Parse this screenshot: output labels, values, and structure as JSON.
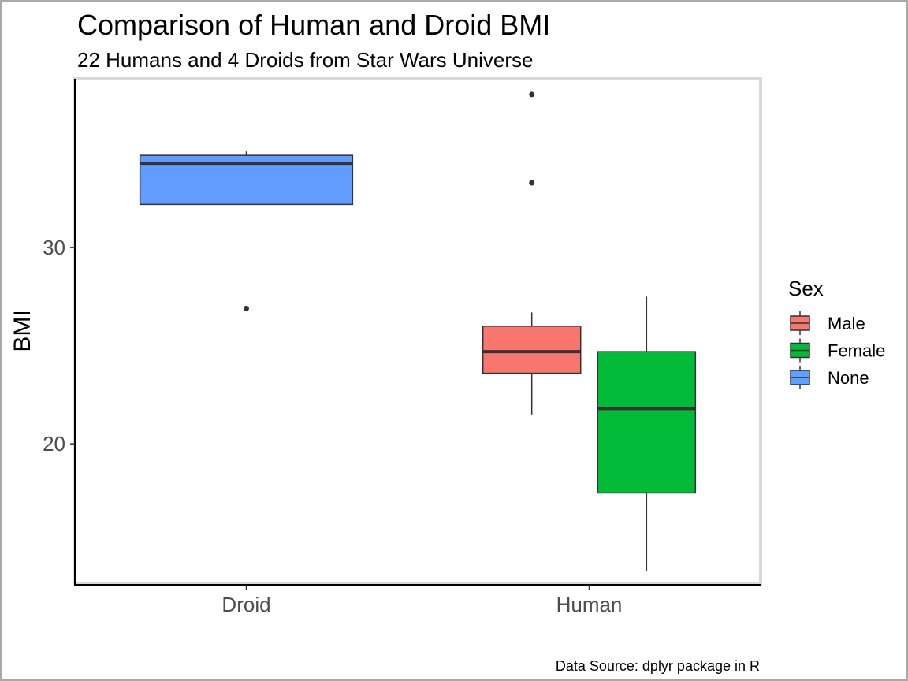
{
  "chart_data": {
    "type": "box",
    "title": "Comparison of Human and Droid BMI",
    "subtitle": "22 Humans and 4 Droids from Star Wars Universe",
    "caption": "Data Source: dplyr package in R",
    "xlabel": "",
    "ylabel": "BMI",
    "categories": [
      "Droid",
      "Human"
    ],
    "ylim": [
      12.9,
      38.6
    ],
    "yticks": [
      20,
      30
    ],
    "legend": {
      "title": "Sex",
      "position": "right"
    },
    "series": [
      {
        "name": "Male",
        "color": "#F8766D",
        "boxes": [
          {
            "category": "Human",
            "min": 21.5,
            "q1": 23.6,
            "median": 24.7,
            "q3": 26.0,
            "max": 26.7,
            "outliers": [
              33.3,
              37.8
            ]
          }
        ]
      },
      {
        "name": "Female",
        "color": "#00BA38",
        "boxes": [
          {
            "category": "Human",
            "min": 13.5,
            "q1": 17.5,
            "median": 21.8,
            "q3": 24.7,
            "max": 27.5,
            "outliers": []
          }
        ]
      },
      {
        "name": "None",
        "color": "#619CFF",
        "boxes": [
          {
            "category": "Droid",
            "min": 32.2,
            "q1": 32.2,
            "median": 34.3,
            "q3": 34.7,
            "max": 34.9,
            "outliers": [
              26.9
            ]
          }
        ]
      }
    ]
  }
}
